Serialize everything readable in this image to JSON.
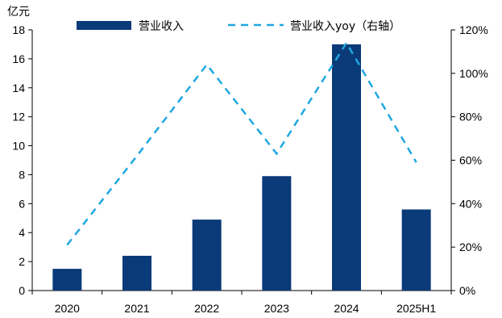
{
  "chart_data": {
    "type": "bar",
    "categories": [
      "2020",
      "2021",
      "2022",
      "2023",
      "2024",
      "2025H1"
    ],
    "left_unit_label": "亿元",
    "series": [
      {
        "name": "营业收入",
        "kind": "bar",
        "axis": "left",
        "color": "#0a3a78",
        "values": [
          1.5,
          2.4,
          4.9,
          7.9,
          17.0,
          5.6
        ]
      },
      {
        "name": "营业收入yoy（右轴）",
        "kind": "line",
        "style": "dashed",
        "axis": "right",
        "color": "#1fa7e0",
        "values": [
          0.21,
          0.62,
          1.04,
          0.63,
          1.14,
          0.59
        ]
      }
    ],
    "y_left": {
      "min": 0,
      "max": 18,
      "ticks": [
        "0",
        "2",
        "4",
        "6",
        "8",
        "10",
        "12",
        "14",
        "16",
        "18"
      ]
    },
    "y_right": {
      "min": 0,
      "max": 1.2,
      "ticks": [
        "0%",
        "20%",
        "40%",
        "60%",
        "80%",
        "100%",
        "120%"
      ]
    },
    "grid": false,
    "legend_position": "top"
  }
}
